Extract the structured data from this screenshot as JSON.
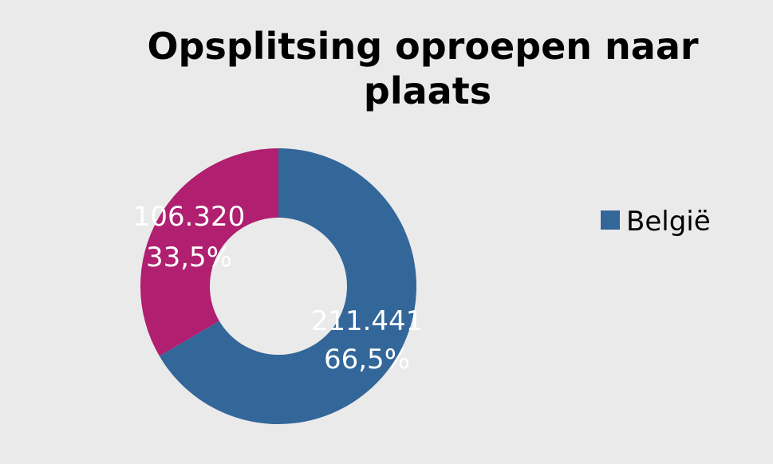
{
  "chart_data": {
    "type": "pie",
    "donut": true,
    "title_lines": [
      "Opsplitsing oproepen naar",
      "plaats"
    ],
    "slices": [
      {
        "name": "België",
        "value": 211441,
        "value_label": "211.441",
        "percent_label": "66,5%",
        "color": "#336699"
      },
      {
        "name": "",
        "value": 106320,
        "value_label": "106.320",
        "percent_label": "33,5%",
        "color": "#b01f70"
      }
    ],
    "legend": {
      "placement": "right",
      "entries": [
        {
          "label": "België",
          "color": "#336699"
        }
      ]
    }
  }
}
